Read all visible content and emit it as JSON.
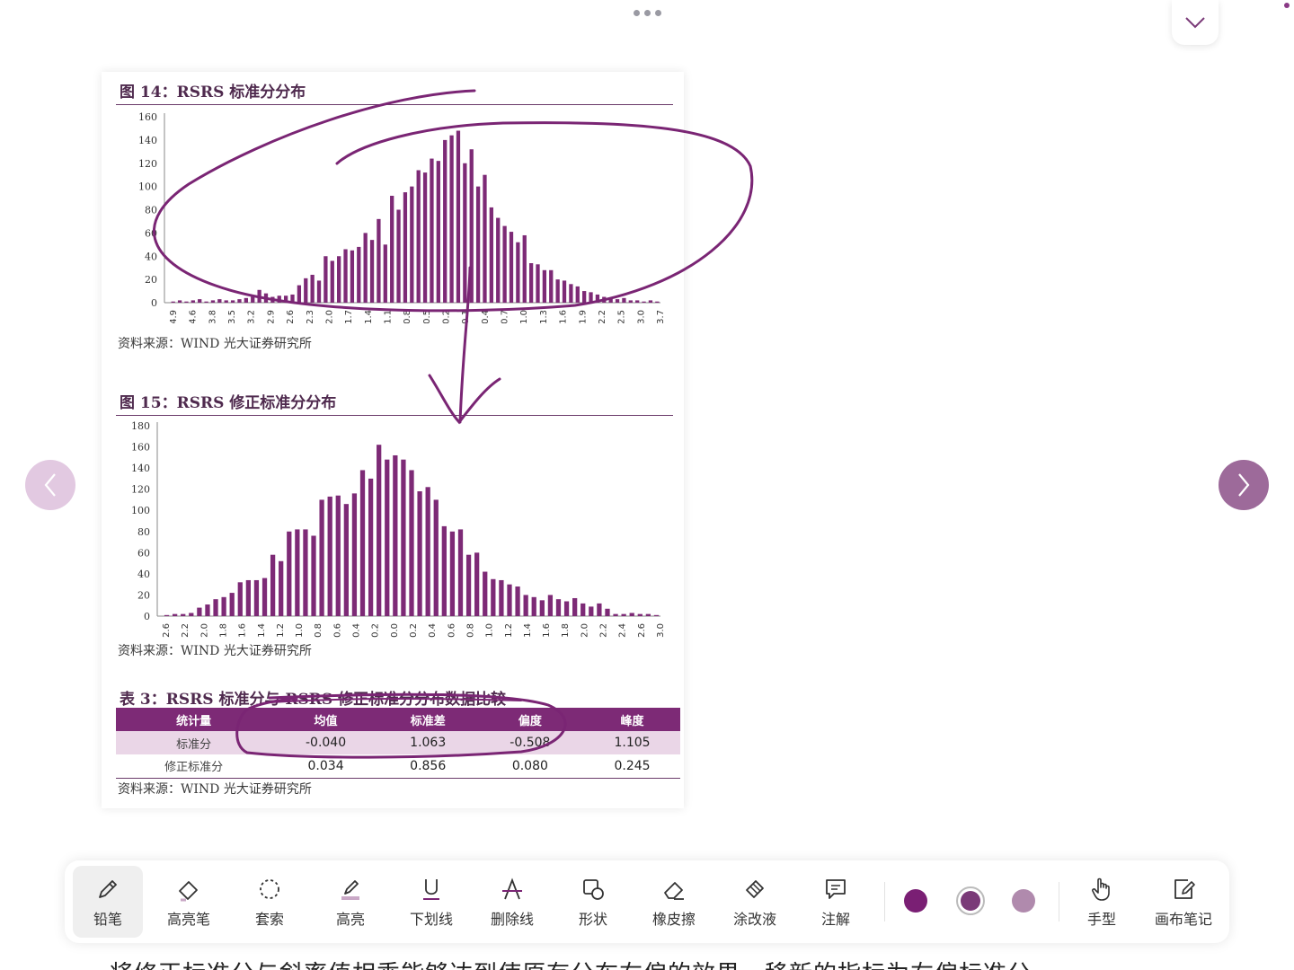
{
  "colors": {
    "accent": "#7d2a76",
    "ink": "#7a2574",
    "bar": "#7d2a76"
  },
  "figure14": {
    "title": "图 14：RSRS 标准分分布",
    "source": "资料来源：WIND 光大证券研究所",
    "chart_data": {
      "type": "bar",
      "title": "图 14：RSRS 标准分分布",
      "ylim": [
        0,
        160
      ],
      "yticks": [
        "160",
        "140",
        "120",
        "100",
        "80",
        "60",
        "40",
        "20",
        "0"
      ],
      "xticks": [
        "-4.9",
        "-4.6",
        "-3.8",
        "-3.5",
        "-3.2",
        "-2.9",
        "-2.6",
        "-2.3",
        "-2.0",
        "-1.7",
        "-1.4",
        "-1.1",
        "-0.8",
        "-0.5",
        "-0.2",
        "0.1",
        "0.4",
        "0.7",
        "1.0",
        "1.3",
        "1.6",
        "1.9",
        "2.2",
        "2.5",
        "3.0",
        "3.7"
      ],
      "values": [
        1,
        2,
        1,
        2,
        3,
        1,
        2,
        3,
        2,
        2,
        3,
        4,
        5,
        11,
        8,
        5,
        6,
        6,
        7,
        15,
        21,
        24,
        19,
        40,
        36,
        40,
        46,
        45,
        48,
        60,
        54,
        72,
        50,
        92,
        80,
        95,
        100,
        114,
        112,
        124,
        122,
        140,
        144,
        148,
        120,
        132,
        100,
        110,
        82,
        73,
        66,
        61,
        52,
        58,
        34,
        33,
        28,
        28,
        20,
        19,
        16,
        14,
        10,
        9,
        7,
        5,
        4,
        3,
        4,
        2,
        2,
        1,
        2,
        1
      ]
    }
  },
  "figure15": {
    "title": "图 15：RSRS 修正标准分分布",
    "source": "资料来源：WIND 光大证券研究所",
    "chart_data": {
      "type": "bar",
      "title": "图 15：RSRS 修正标准分分布",
      "ylim": [
        0,
        180
      ],
      "yticks": [
        "180",
        "160",
        "140",
        "120",
        "100",
        "80",
        "60",
        "40",
        "20",
        "0"
      ],
      "xticks": [
        "-2.6",
        "-2.2",
        "-2.0",
        "-1.8",
        "-1.6",
        "-1.4",
        "-1.2",
        "-1.0",
        "-0.8",
        "-0.6",
        "-0.4",
        "-0.2",
        "0.0",
        "0.2",
        "0.4",
        "0.6",
        "0.8",
        "1.0",
        "1.2",
        "1.4",
        "1.6",
        "1.8",
        "2.0",
        "2.2",
        "2.4",
        "2.6",
        "3.0"
      ],
      "values": [
        1,
        2,
        2,
        3,
        8,
        11,
        16,
        18,
        22,
        32,
        34,
        34,
        36,
        58,
        52,
        80,
        82,
        82,
        76,
        110,
        113,
        114,
        106,
        116,
        138,
        130,
        162,
        148,
        152,
        148,
        138,
        118,
        122,
        110,
        85,
        80,
        82,
        58,
        60,
        42,
        35,
        34,
        30,
        28,
        20,
        18,
        15,
        20,
        16,
        14,
        17,
        12,
        9,
        12,
        7,
        2,
        2,
        3,
        2,
        2,
        1
      ]
    }
  },
  "table3": {
    "title": "表 3：RSRS 标准分与 RSRS 修正标准分分布数据比较",
    "headers": [
      "统计量",
      "均值",
      "标准差",
      "偏度",
      "峰度"
    ],
    "rows": [
      [
        "标准分",
        "-0.040",
        "1.063",
        "-0.508",
        "1.105"
      ],
      [
        "修正标准分",
        "0.034",
        "0.856",
        "0.080",
        "0.245"
      ]
    ],
    "source": "资料来源：WIND 光大证券研究所"
  },
  "toolbar": {
    "tools": [
      {
        "label": "铅笔",
        "icon": "pencil-icon"
      },
      {
        "label": "高亮笔",
        "icon": "highlighter-icon"
      },
      {
        "label": "套索",
        "icon": "lasso-icon"
      },
      {
        "label": "高亮",
        "icon": "highlight-icon"
      },
      {
        "label": "下划线",
        "icon": "underline-icon"
      },
      {
        "label": "删除线",
        "icon": "strikethrough-icon"
      },
      {
        "label": "形状",
        "icon": "shape-icon"
      },
      {
        "label": "橡皮擦",
        "icon": "eraser-icon"
      },
      {
        "label": "涂改液",
        "icon": "correction-fluid-icon"
      },
      {
        "label": "注解",
        "icon": "comment-icon"
      }
    ],
    "colors": [
      "#7a1f74",
      "#7a3a78",
      "#b08aad"
    ],
    "right_tools": [
      {
        "label": "手型",
        "icon": "hand-icon"
      },
      {
        "label": "画布笔记",
        "icon": "canvas-note-icon"
      }
    ]
  },
  "caption": "将修正标准分与斜率值相乘能够达到使原有分布右偏的效果，移新的指标为右偏标准分"
}
